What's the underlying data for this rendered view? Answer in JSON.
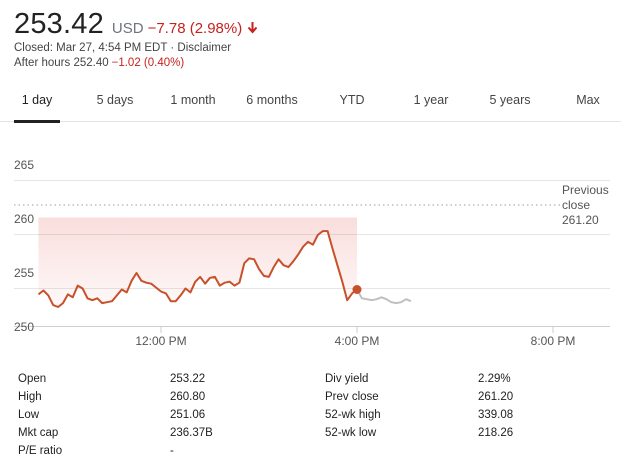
{
  "quote": {
    "price": "253.42",
    "currency": "USD",
    "change": "−7.78 (2.98%)",
    "closed_text": "Closed: Mar 27, 4:54 PM EDT · Disclaimer",
    "after_hours_label": "After hours 252.40",
    "after_hours_change": "−1.02 (0.40%)",
    "negative_color": "#c5221f",
    "arrow_icon": "down-arrow-icon"
  },
  "tabs": [
    {
      "label": "1 day",
      "active": true
    },
    {
      "label": "5 days"
    },
    {
      "label": "1 month"
    },
    {
      "label": "6 months"
    },
    {
      "label": "YTD"
    },
    {
      "label": "1 year"
    },
    {
      "label": "5 years"
    },
    {
      "label": "Max"
    }
  ],
  "chart_data": {
    "type": "line",
    "yticks": [
      "265",
      "260",
      "255",
      "250"
    ],
    "ylim": [
      249.7,
      266.5
    ],
    "xticks": [
      "12:00 PM",
      "4:00 PM",
      "8:00 PM"
    ],
    "xlim": [
      9.3,
      21
    ],
    "previous_close": {
      "label_1": "Previous",
      "label_2": "close",
      "value_label": "261.20",
      "value": 261.2
    },
    "line_color": "#c8502a",
    "afterhours_color": "#bfbfbf",
    "series_main": {
      "x": [
        9.5,
        9.6,
        9.7,
        9.8,
        9.9,
        10.0,
        10.1,
        10.2,
        10.3,
        10.4,
        10.5,
        10.6,
        10.7,
        10.8,
        10.9,
        11.0,
        11.1,
        11.2,
        11.3,
        11.4,
        11.5,
        11.6,
        11.7,
        11.8,
        11.9,
        12.0,
        12.1,
        12.2,
        12.3,
        12.4,
        12.5,
        12.6,
        12.7,
        12.8,
        12.9,
        13.0,
        13.1,
        13.2,
        13.3,
        13.4,
        13.5,
        13.6,
        13.7,
        13.8,
        13.9,
        14.0,
        14.1,
        14.2,
        14.3,
        14.4,
        14.5,
        14.6,
        14.7,
        14.8,
        14.9,
        15.0,
        15.1,
        15.2,
        15.3,
        15.4,
        15.5,
        15.6,
        15.7,
        15.8,
        15.9,
        16.0
      ],
      "y": [
        253.3,
        253.7,
        253.2,
        252.2,
        252.0,
        252.4,
        253.3,
        253.0,
        254.2,
        253.9,
        252.9,
        252.7,
        252.9,
        252.4,
        252.5,
        252.6,
        253.2,
        253.8,
        253.5,
        254.7,
        255.5,
        254.7,
        254.5,
        254.4,
        254.0,
        253.6,
        253.4,
        252.6,
        252.6,
        253.2,
        253.9,
        253.5,
        254.6,
        255.1,
        254.4,
        255.0,
        255.1,
        254.2,
        254.5,
        254.6,
        254.2,
        254.5,
        256.5,
        257.0,
        256.9,
        255.9,
        255.2,
        255.1,
        256.1,
        256.9,
        256.3,
        256.1,
        256.7,
        257.4,
        258.2,
        258.7,
        258.4,
        259.4,
        259.8,
        259.8,
        258.0,
        256.3,
        254.6,
        252.7,
        253.4,
        253.8
      ]
    },
    "series_after": {
      "x": [
        16.0,
        16.1,
        16.2,
        16.3,
        16.4,
        16.5,
        16.6,
        16.7,
        16.8,
        16.9,
        17.0,
        17.1
      ],
      "y": [
        253.8,
        252.9,
        252.8,
        252.7,
        252.8,
        253.0,
        252.8,
        252.5,
        252.4,
        252.5,
        252.8,
        252.6
      ]
    },
    "current_point": {
      "x": 16.0,
      "y": 253.8
    }
  },
  "stats": {
    "left": [
      {
        "key": "Open",
        "value": "253.22"
      },
      {
        "key": "High",
        "value": "260.80"
      },
      {
        "key": "Low",
        "value": "251.06"
      },
      {
        "key": "Mkt cap",
        "value": "236.37B"
      },
      {
        "key": "P/E ratio",
        "value": "-"
      }
    ],
    "right": [
      {
        "key": "Div yield",
        "value": "2.29%"
      },
      {
        "key": "Prev close",
        "value": "261.20"
      },
      {
        "key": "52-wk high",
        "value": "339.08"
      },
      {
        "key": "52-wk low",
        "value": "218.26"
      }
    ]
  }
}
